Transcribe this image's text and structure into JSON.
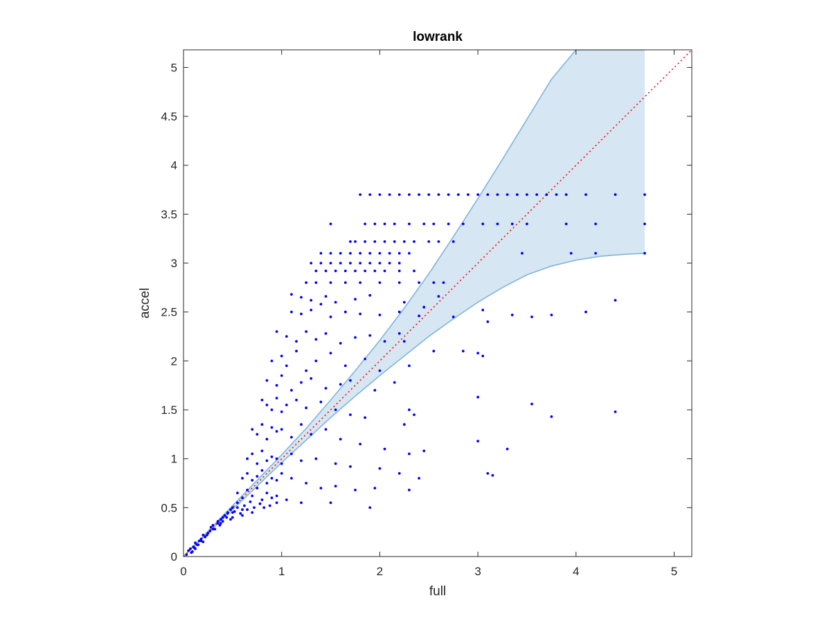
{
  "chart_data": {
    "type": "scatter",
    "title": "lowrank",
    "xlabel": "full",
    "ylabel": "accel",
    "xlim": [
      0,
      5.18
    ],
    "ylim": [
      0,
      5.18
    ],
    "xticks": [
      0,
      1,
      2,
      3,
      4,
      5
    ],
    "xtick_labels": [
      "0",
      "1",
      "2",
      "3",
      "4",
      "5"
    ],
    "yticks": [
      0,
      0.5,
      1,
      1.5,
      2,
      2.5,
      3,
      3.5,
      4,
      4.5,
      5
    ],
    "ytick_labels": [
      "0",
      "0.5",
      "1",
      "1.5",
      "2",
      "2.5",
      "3",
      "3.5",
      "4",
      "4.5",
      "5"
    ],
    "grid": false,
    "box": true,
    "colors": {
      "points": "#0000ff",
      "band_fill": "#d6e6f2",
      "band_edge": "#7fb4dc",
      "reference": "#ff0000",
      "axes": "#262626"
    },
    "reference_line": {
      "x": [
        0,
        5.18
      ],
      "y": [
        0,
        5.18
      ],
      "style": "dotted"
    },
    "band": {
      "x": [
        0,
        0.25,
        0.5,
        0.75,
        1.0,
        1.25,
        1.5,
        1.75,
        2.0,
        2.25,
        2.5,
        2.75,
        3.0,
        3.25,
        3.5,
        3.75,
        4.0,
        4.25,
        4.5,
        4.7
      ],
      "upper": [
        0,
        0.26,
        0.52,
        0.78,
        1.04,
        1.31,
        1.6,
        1.9,
        2.21,
        2.54,
        2.89,
        3.27,
        3.66,
        4.06,
        4.47,
        4.88,
        5.18,
        5.18,
        5.18,
        5.18
      ],
      "lower": [
        0,
        0.24,
        0.48,
        0.72,
        0.96,
        1.19,
        1.42,
        1.64,
        1.85,
        2.05,
        2.25,
        2.43,
        2.6,
        2.75,
        2.88,
        2.97,
        3.03,
        3.07,
        3.09,
        3.1
      ]
    },
    "series": [
      {
        "x": [
          1.8,
          1.9,
          2.0,
          2.1,
          2.2,
          2.3,
          2.4,
          2.5,
          2.6,
          2.7,
          2.8,
          2.9,
          3.0,
          3.1,
          3.2,
          3.3,
          3.4,
          3.5,
          3.6,
          3.7,
          3.8,
          3.9,
          4.1,
          4.4,
          4.7,
          1.5,
          1.85,
          1.95,
          2.05,
          2.15,
          2.3,
          2.45,
          2.55,
          2.7,
          2.85,
          3.05,
          3.2,
          3.35,
          3.5,
          3.9,
          4.2,
          4.7,
          1.7,
          1.75,
          1.85,
          1.95,
          2.05,
          2.15,
          2.25,
          2.35,
          2.5,
          2.6,
          2.75,
          1.4,
          1.5,
          1.6,
          1.7,
          1.8,
          1.9,
          2.0,
          2.1,
          2.2,
          2.3,
          3.45,
          3.95,
          4.2,
          4.7,
          1.3,
          1.4,
          1.5,
          1.6,
          1.7,
          1.8,
          1.9,
          2.0,
          2.1,
          2.2,
          1.35,
          1.45,
          1.55,
          1.65,
          1.75,
          1.85,
          1.95,
          2.05,
          2.2,
          2.35,
          1.25,
          1.35,
          1.5,
          1.65,
          1.8,
          2.0,
          2.2,
          2.4,
          2.55,
          2.65,
          1.1,
          1.2,
          1.3,
          1.4,
          1.45,
          1.55,
          1.75,
          1.9,
          2.25,
          2.45,
          2.6,
          1.1,
          1.2,
          1.3,
          1.5,
          1.65,
          1.8,
          2.0,
          2.2,
          2.4,
          2.75,
          3.05,
          3.35,
          3.55,
          3.75,
          4.1,
          4.4,
          2.25,
          2.55,
          2.85,
          3.0,
          3.05,
          0.95,
          1.05,
          1.15,
          1.25,
          1.35,
          1.45,
          1.6,
          1.75,
          1.9,
          2.05,
          2.2,
          0.9,
          1.0,
          1.05,
          1.15,
          1.25,
          1.35,
          1.5,
          1.65,
          1.85,
          2.0,
          2.3,
          3.1,
          3.55,
          3.75,
          4.4,
          0.85,
          0.95,
          1.0,
          1.1,
          1.2,
          1.3,
          1.45,
          1.6,
          1.7,
          1.95,
          2.15,
          2.3,
          2.35,
          0.8,
          0.85,
          0.9,
          0.95,
          1.0,
          1.05,
          1.15,
          1.25,
          1.4,
          1.55,
          1.7,
          1.85,
          2.25,
          3.0,
          3.3,
          0.7,
          0.75,
          0.8,
          0.85,
          0.9,
          0.95,
          1.0,
          1.1,
          1.2,
          1.3,
          1.45,
          1.6,
          1.8,
          2.05,
          2.3,
          2.45,
          3.0,
          0.65,
          0.7,
          0.75,
          0.8,
          0.85,
          0.9,
          0.95,
          1.0,
          1.1,
          1.2,
          1.35,
          1.55,
          1.7,
          2.0,
          2.2,
          2.4,
          3.1,
          3.15,
          0.6,
          0.65,
          0.7,
          0.75,
          0.8,
          0.85,
          0.9,
          0.95,
          1.0,
          1.1,
          1.25,
          1.4,
          1.55,
          1.75,
          1.95,
          2.3,
          0.55,
          0.6,
          0.65,
          0.7,
          0.75,
          0.8,
          0.85,
          0.9,
          0.95,
          1.05,
          1.2,
          1.5,
          1.9,
          0.5,
          0.55,
          0.6,
          0.62,
          0.68,
          0.72,
          0.78,
          0.82,
          0.88,
          0.95,
          0.42,
          0.45,
          0.48,
          0.5,
          0.52,
          0.55,
          0.58,
          0.6,
          0.65,
          0.7,
          0.35,
          0.38,
          0.4,
          0.42,
          0.45,
          0.48,
          0.5,
          0.38,
          0.44,
          0.28,
          0.3,
          0.32,
          0.35,
          0.37,
          0.4,
          0.2,
          0.22,
          0.25,
          0.27,
          0.3,
          0.18,
          0.24,
          0.12,
          0.14,
          0.16,
          0.18,
          0.2,
          0.22,
          0.05,
          0.07,
          0.09,
          0.1,
          0.12,
          0.15,
          0.03,
          0.08,
          0.11
        ],
        "y": [
          3.7,
          3.7,
          3.7,
          3.7,
          3.7,
          3.7,
          3.7,
          3.7,
          3.7,
          3.7,
          3.7,
          3.7,
          3.7,
          3.7,
          3.7,
          3.7,
          3.7,
          3.7,
          3.7,
          3.7,
          3.7,
          3.7,
          3.7,
          3.7,
          3.7,
          3.4,
          3.4,
          3.4,
          3.4,
          3.4,
          3.4,
          3.4,
          3.4,
          3.4,
          3.4,
          3.4,
          3.4,
          3.4,
          3.4,
          3.4,
          3.4,
          3.4,
          3.22,
          3.22,
          3.22,
          3.22,
          3.22,
          3.22,
          3.22,
          3.22,
          3.22,
          3.22,
          3.22,
          3.1,
          3.1,
          3.1,
          3.1,
          3.1,
          3.1,
          3.1,
          3.1,
          3.1,
          3.1,
          3.1,
          3.1,
          3.1,
          3.1,
          3.0,
          3.0,
          3.0,
          3.0,
          3.0,
          3.0,
          3.0,
          3.0,
          3.0,
          3.0,
          2.92,
          2.92,
          2.92,
          2.92,
          2.92,
          2.92,
          2.92,
          2.92,
          2.92,
          2.92,
          2.8,
          2.8,
          2.8,
          2.8,
          2.8,
          2.8,
          2.8,
          2.8,
          2.8,
          2.8,
          2.68,
          2.65,
          2.62,
          2.58,
          2.66,
          2.6,
          2.63,
          2.67,
          2.6,
          2.55,
          2.66,
          2.5,
          2.48,
          2.52,
          2.45,
          2.5,
          2.48,
          2.47,
          2.5,
          2.46,
          2.45,
          2.52,
          2.47,
          2.45,
          2.47,
          2.5,
          2.62,
          2.2,
          2.1,
          2.1,
          2.08,
          2.05,
          2.3,
          2.25,
          2.2,
          2.3,
          2.22,
          2.28,
          2.18,
          2.24,
          2.26,
          2.2,
          2.28,
          2.0,
          2.05,
          1.95,
          2.1,
          1.9,
          2.0,
          2.08,
          1.95,
          2.02,
          1.9,
          1.95,
          2.4,
          1.56,
          1.43,
          1.48,
          1.8,
          1.75,
          1.85,
          1.7,
          1.78,
          1.82,
          1.72,
          1.76,
          1.8,
          1.7,
          1.78,
          1.5,
          1.45,
          1.6,
          1.55,
          1.5,
          1.62,
          1.48,
          1.55,
          1.6,
          1.52,
          1.58,
          1.5,
          1.45,
          1.42,
          1.35,
          1.63,
          1.1,
          1.3,
          1.25,
          1.35,
          1.2,
          1.32,
          1.28,
          1.3,
          1.22,
          1.35,
          1.25,
          1.3,
          1.2,
          1.15,
          1.1,
          1.05,
          1.08,
          1.18,
          1.0,
          1.05,
          0.95,
          1.08,
          0.98,
          1.02,
          1.0,
          0.95,
          1.05,
          0.98,
          1.0,
          0.95,
          0.92,
          0.9,
          0.85,
          0.8,
          0.85,
          0.83,
          0.8,
          0.85,
          0.78,
          0.82,
          0.88,
          0.75,
          0.8,
          0.78,
          0.85,
          0.8,
          0.75,
          0.7,
          0.72,
          0.68,
          0.7,
          0.68,
          0.65,
          0.6,
          0.68,
          0.62,
          0.7,
          0.58,
          0.65,
          0.6,
          0.62,
          0.58,
          0.55,
          0.55,
          0.5,
          0.5,
          0.55,
          0.48,
          0.52,
          0.56,
          0.5,
          0.54,
          0.5,
          0.52,
          0.55,
          0.42,
          0.45,
          0.48,
          0.4,
          0.46,
          0.5,
          0.44,
          0.42,
          0.48,
          0.45,
          0.36,
          0.38,
          0.4,
          0.42,
          0.44,
          0.38,
          0.45,
          0.34,
          0.4,
          0.3,
          0.32,
          0.28,
          0.34,
          0.32,
          0.36,
          0.22,
          0.2,
          0.24,
          0.26,
          0.28,
          0.16,
          0.22,
          0.14,
          0.12,
          0.16,
          0.18,
          0.15,
          0.2,
          0.06,
          0.08,
          0.05,
          0.1,
          0.08,
          0.12,
          0.02,
          0.04,
          0.09
        ]
      }
    ]
  }
}
